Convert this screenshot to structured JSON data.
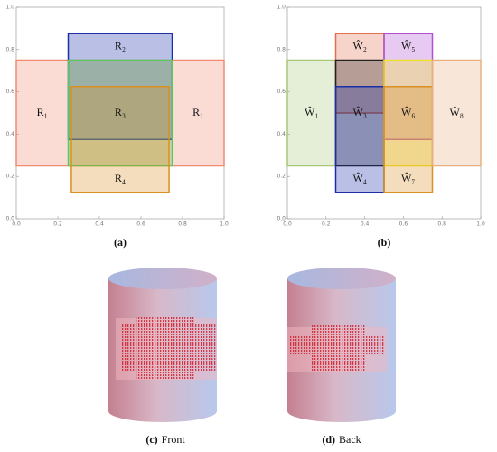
{
  "chart_data": [
    {
      "type": "rectangles",
      "xlim": [
        0,
        1
      ],
      "ylim": [
        0,
        1
      ],
      "xticks": [
        {
          "value": 0,
          "label": "0.0"
        },
        {
          "value": 0.2,
          "label": "0.2"
        },
        {
          "value": 0.4,
          "label": "0.4"
        },
        {
          "value": 0.6,
          "label": "0.6"
        },
        {
          "value": 0.8,
          "label": "0.8"
        },
        {
          "value": 1,
          "label": "1.0"
        }
      ],
      "yticks": [
        {
          "value": 0,
          "label": "0.0"
        },
        {
          "value": 0.2,
          "label": "0.2"
        },
        {
          "value": 0.4,
          "label": "0.4"
        },
        {
          "value": 0.6,
          "label": "0.6"
        },
        {
          "value": 0.8,
          "label": "0.8"
        },
        {
          "value": 1,
          "label": "1.0"
        }
      ],
      "rects": [
        {
          "name": "R₁",
          "color": "#f08a70",
          "x": [
            0,
            1
          ],
          "y": [
            0.25,
            0.75
          ]
        },
        {
          "name": "R₂",
          "color": "#1a2fa8",
          "x": [
            0.25,
            0.75
          ],
          "y": [
            0.375,
            0.875
          ]
        },
        {
          "name": "R₃",
          "color": "#5cc85c",
          "x": [
            0.25,
            0.75
          ],
          "y": [
            0.25,
            0.75
          ]
        },
        {
          "name": "R₄",
          "color": "#d99020",
          "x": [
            0.265,
            0.735
          ],
          "y": [
            0.125,
            0.625
          ]
        }
      ]
    },
    {
      "type": "rectangles",
      "xlim": [
        0,
        1
      ],
      "ylim": [
        0,
        1
      ],
      "xticks": [
        {
          "value": 0,
          "label": "0.0"
        },
        {
          "value": 0.2,
          "label": "0.2"
        },
        {
          "value": 0.4,
          "label": "0.4"
        },
        {
          "value": 0.6,
          "label": "0.6"
        },
        {
          "value": 0.8,
          "label": "0.8"
        },
        {
          "value": 1,
          "label": "1.0"
        }
      ],
      "yticks": [
        {
          "value": 0,
          "label": "0.0"
        },
        {
          "value": 0.2,
          "label": "0.2"
        },
        {
          "value": 0.4,
          "label": "0.4"
        },
        {
          "value": 0.6,
          "label": "0.6"
        },
        {
          "value": 0.8,
          "label": "0.8"
        },
        {
          "value": 1,
          "label": "1.0"
        }
      ],
      "rects": [
        {
          "name": "Ŵ₁",
          "color": "#a8c878",
          "x": [
            0,
            0.25
          ],
          "y": [
            0.25,
            0.75
          ]
        },
        {
          "name": "Ŵ₂",
          "color": "#e07050",
          "x": [
            0.25,
            0.5
          ],
          "y": [
            0.5,
            0.875
          ]
        },
        {
          "name": "Ŵ₃",
          "color": "#222222",
          "x": [
            0.25,
            0.5
          ],
          "y": [
            0.25,
            0.75
          ]
        },
        {
          "name": "Ŵ₄",
          "color": "#1a2fa8",
          "x": [
            0.25,
            0.5
          ],
          "y": [
            0.125,
            0.625
          ]
        },
        {
          "name": "Ŵ₅",
          "color": "#b050d0",
          "x": [
            0.5,
            0.75
          ],
          "y": [
            0.375,
            0.875
          ]
        },
        {
          "name": "Ŵ₆",
          "color": "#f0e020",
          "x": [
            0.5,
            0.75
          ],
          "y": [
            0.25,
            0.75
          ]
        },
        {
          "name": "Ŵ₇",
          "color": "#d99020",
          "x": [
            0.5,
            0.75
          ],
          "y": [
            0.125,
            0.625
          ]
        },
        {
          "name": "Ŵ₈",
          "color": "#e8b080",
          "x": [
            0.75,
            1
          ],
          "y": [
            0.25,
            0.75
          ]
        }
      ]
    }
  ],
  "captions": [
    {
      "tag": "(a)"
    },
    {
      "tag": "(b)"
    },
    {
      "tag": "(c)",
      "text": "Front"
    },
    {
      "tag": "(d)",
      "text": "Back"
    }
  ]
}
